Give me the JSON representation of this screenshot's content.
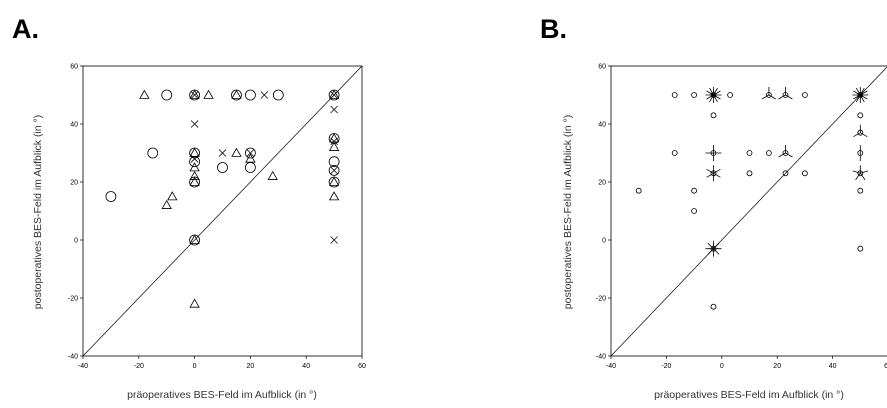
{
  "chart_data": [
    {
      "type": "scatter",
      "panel_label": "A.",
      "xlabel": "präoperatives BES-Feld im Aufblick (in °)",
      "ylabel": "postoperatives BES-Feld im Aufblick (in °)",
      "xlim": [
        -40,
        60
      ],
      "ylim": [
        -40,
        60
      ],
      "xticks": [
        -40,
        -20,
        0,
        20,
        40,
        60
      ],
      "yticks": [
        -40,
        -20,
        0,
        20,
        40,
        60
      ],
      "grid": false,
      "reference_line": "y = x",
      "series": [
        {
          "marker": "circle",
          "points": [
            [
              -30,
              15
            ],
            [
              -15,
              30
            ],
            [
              -10,
              50
            ],
            [
              0,
              50
            ],
            [
              0,
              30
            ],
            [
              0,
              27
            ],
            [
              0,
              20
            ],
            [
              0,
              0
            ],
            [
              10,
              25
            ],
            [
              15,
              50
            ],
            [
              20,
              50
            ],
            [
              20,
              30
            ],
            [
              20,
              25
            ],
            [
              30,
              50
            ],
            [
              50,
              50
            ],
            [
              50,
              35
            ],
            [
              50,
              27
            ],
            [
              50,
              24
            ],
            [
              50,
              20
            ]
          ]
        },
        {
          "marker": "triangle",
          "points": [
            [
              -18,
              50
            ],
            [
              -10,
              12
            ],
            [
              -8,
              15
            ],
            [
              0,
              50
            ],
            [
              0,
              30
            ],
            [
              0,
              25
            ],
            [
              0,
              22
            ],
            [
              0,
              20
            ],
            [
              0,
              0
            ],
            [
              0,
              -22
            ],
            [
              5,
              50
            ],
            [
              15,
              50
            ],
            [
              15,
              30
            ],
            [
              20,
              28
            ],
            [
              28,
              22
            ],
            [
              50,
              50
            ],
            [
              50,
              35
            ],
            [
              50,
              32
            ],
            [
              50,
              20
            ],
            [
              50,
              15
            ]
          ]
        },
        {
          "marker": "x",
          "points": [
            [
              0,
              50
            ],
            [
              0,
              40
            ],
            [
              0,
              28
            ],
            [
              10,
              30
            ],
            [
              20,
              30
            ],
            [
              25,
              50
            ],
            [
              50,
              50
            ],
            [
              50,
              45
            ],
            [
              50,
              34
            ],
            [
              50,
              24
            ],
            [
              50,
              0
            ]
          ]
        }
      ]
    },
    {
      "type": "scatter",
      "panel_label": "B.",
      "xlabel": "präoperatives BES-Feld im Aufblick (in °)",
      "ylabel": "postoperatives BES-Feld im Aufblick (in °)",
      "xlim": [
        -40,
        60
      ],
      "ylim": [
        -40,
        60
      ],
      "xticks": [
        -40,
        -20,
        0,
        20,
        40,
        60
      ],
      "yticks": [
        -40,
        -20,
        0,
        20,
        40,
        60
      ],
      "grid": false,
      "reference_line": "y = x",
      "series": [
        {
          "marker": "sunflower",
          "points": [
            {
              "x": -30,
              "y": 17,
              "petals": 0
            },
            {
              "x": -17,
              "y": 50,
              "petals": 0
            },
            {
              "x": -17,
              "y": 30,
              "petals": 0
            },
            {
              "x": -10,
              "y": 50,
              "petals": 0
            },
            {
              "x": -10,
              "y": 17,
              "petals": 0
            },
            {
              "x": -10,
              "y": 10,
              "petals": 0
            },
            {
              "x": -3,
              "y": 50,
              "petals": 12
            },
            {
              "x": -3,
              "y": 43,
              "petals": 0
            },
            {
              "x": -3,
              "y": 30,
              "petals": 4
            },
            {
              "x": -3,
              "y": 23,
              "petals": 6
            },
            {
              "x": -3,
              "y": -3,
              "petals": 8
            },
            {
              "x": -3,
              "y": -23,
              "petals": 0
            },
            {
              "x": 3,
              "y": 50,
              "petals": 0
            },
            {
              "x": 10,
              "y": 30,
              "petals": 0
            },
            {
              "x": 10,
              "y": 23,
              "petals": 0
            },
            {
              "x": 17,
              "y": 50,
              "petals": 3
            },
            {
              "x": 17,
              "y": 30,
              "petals": 0
            },
            {
              "x": 23,
              "y": 50,
              "petals": 3
            },
            {
              "x": 23,
              "y": 30,
              "petals": 3
            },
            {
              "x": 23,
              "y": 23,
              "petals": 0
            },
            {
              "x": 30,
              "y": 50,
              "petals": 0
            },
            {
              "x": 30,
              "y": 23,
              "petals": 0
            },
            {
              "x": 50,
              "y": 50,
              "petals": 12
            },
            {
              "x": 50,
              "y": 43,
              "petals": 0
            },
            {
              "x": 50,
              "y": 37,
              "petals": 3
            },
            {
              "x": 50,
              "y": 30,
              "petals": 2
            },
            {
              "x": 50,
              "y": 23,
              "petals": 5
            },
            {
              "x": 50,
              "y": 17,
              "petals": 0
            },
            {
              "x": 50,
              "y": -3,
              "petals": 0
            }
          ]
        }
      ]
    }
  ]
}
